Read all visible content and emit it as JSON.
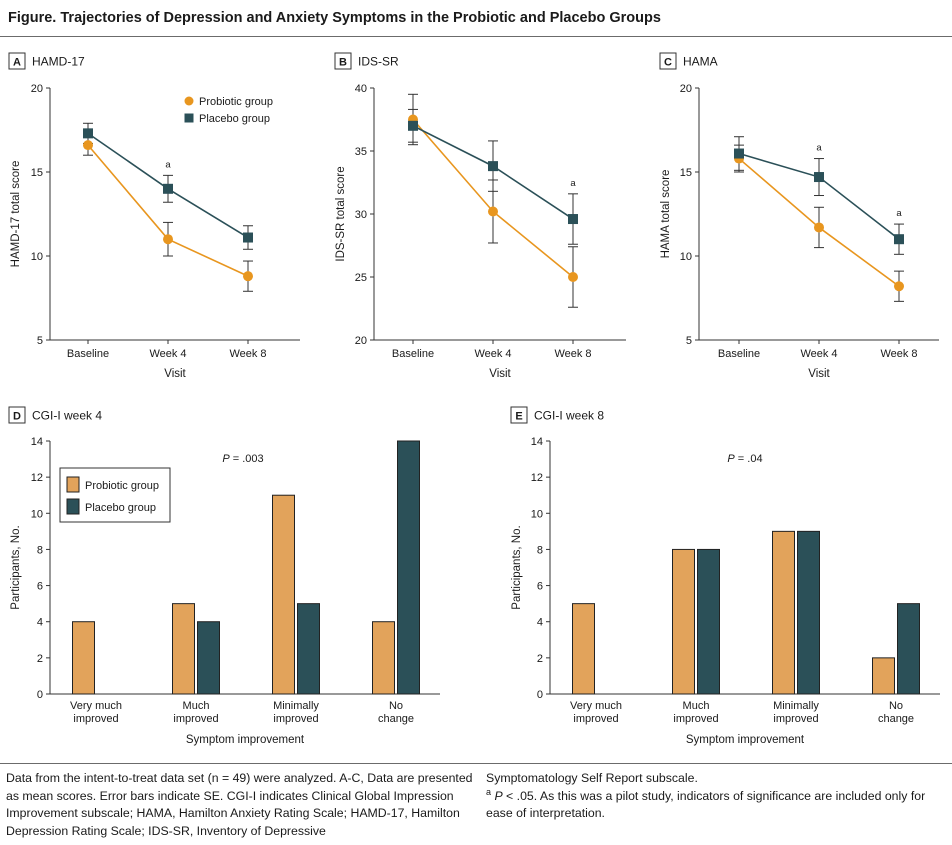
{
  "figure_title": "Figure. Trajectories of Depression and Anxiety Symptoms in the Probiotic and Placebo Groups",
  "colors": {
    "probiotic_line": "#e8961f",
    "probiotic_bar": "#e2a35b",
    "placebo": "#2b5058",
    "axis": "#333333",
    "rule": "#6b6b6b"
  },
  "footnote_left": "Data from the intent-to-treat data set (n = 49) were analyzed. A-C, Data are presented as mean scores. Error bars indicate SE. CGI-I indicates Clinical Global Impression Improvement subscale; HAMA, Hamilton Anxiety Rating Scale; HAMD-17, Hamilton Depression Rating Scale; IDS-SR, Inventory of Depressive",
  "footnote_right_1": "Symptomatology Self Report subscale.",
  "footnote_right_2_sup": "a",
  "footnote_right_2_p": "P",
  "footnote_right_2_text": " < .05. As this was a pilot study, indicators of significance are included only for ease of interpretation.",
  "chart_data": [
    {
      "type": "line",
      "panel": "A",
      "title": "HAMD-17",
      "xlabel": "Visit",
      "ylabel": "HAMD-17 total score",
      "categories": [
        "Baseline",
        "Week 4",
        "Week 8"
      ],
      "ylim": [
        5,
        20
      ],
      "yticks": [
        5,
        10,
        15,
        20
      ],
      "legend": [
        "Probiotic group",
        "Placebo group"
      ],
      "legend_position": "top-right",
      "significance": [
        "",
        "a",
        ""
      ],
      "series": [
        {
          "name": "Probiotic group",
          "marker": "circle",
          "values": [
            16.6,
            11.0,
            8.8
          ],
          "se": [
            0.6,
            1.0,
            0.9
          ]
        },
        {
          "name": "Placebo group",
          "marker": "square",
          "values": [
            17.3,
            14.0,
            11.1
          ],
          "se": [
            0.6,
            0.8,
            0.7
          ]
        }
      ]
    },
    {
      "type": "line",
      "panel": "B",
      "title": "IDS-SR",
      "xlabel": "Visit",
      "ylabel": "IDS-SR total score",
      "categories": [
        "Baseline",
        "Week 4",
        "Week 8"
      ],
      "ylim": [
        20,
        40
      ],
      "yticks": [
        20,
        25,
        30,
        35,
        40
      ],
      "significance": [
        "",
        "",
        "a"
      ],
      "series": [
        {
          "name": "Probiotic group",
          "marker": "circle",
          "values": [
            37.5,
            30.2,
            25.0
          ],
          "se": [
            2.0,
            2.5,
            2.4
          ]
        },
        {
          "name": "Placebo group",
          "marker": "square",
          "values": [
            37.0,
            33.8,
            29.6
          ],
          "se": [
            1.3,
            2.0,
            2.0
          ]
        }
      ]
    },
    {
      "type": "line",
      "panel": "C",
      "title": "HAMA",
      "xlabel": "Visit",
      "ylabel": "HAMA total score",
      "categories": [
        "Baseline",
        "Week 4",
        "Week 8"
      ],
      "ylim": [
        5,
        20
      ],
      "yticks": [
        5,
        10,
        15,
        20
      ],
      "significance": [
        "",
        "a",
        "a"
      ],
      "series": [
        {
          "name": "Probiotic group",
          "marker": "circle",
          "values": [
            15.8,
            11.7,
            8.2
          ],
          "se": [
            0.8,
            1.2,
            0.9
          ]
        },
        {
          "name": "Placebo group",
          "marker": "square",
          "values": [
            16.1,
            14.7,
            11.0
          ],
          "se": [
            1.0,
            1.1,
            0.9
          ]
        }
      ]
    },
    {
      "type": "bar",
      "panel": "D",
      "title": "CGI-I week 4",
      "xlabel": "Symptom improvement",
      "ylabel": "Participants, No.",
      "categories": [
        [
          "Very much",
          "improved"
        ],
        [
          "Much",
          "improved"
        ],
        [
          "Minimally",
          "improved"
        ],
        [
          "No",
          "change"
        ]
      ],
      "ylim": [
        0,
        14
      ],
      "yticks": [
        0,
        2,
        4,
        6,
        8,
        10,
        12,
        14
      ],
      "legend": [
        "Probiotic group",
        "Placebo group"
      ],
      "legend_position": "top-left",
      "p_label": "P",
      "p_value": " = .003",
      "series": [
        {
          "name": "Probiotic group",
          "values": [
            4,
            5,
            11,
            4
          ]
        },
        {
          "name": "Placebo group",
          "values": [
            0,
            4,
            5,
            14
          ]
        }
      ]
    },
    {
      "type": "bar",
      "panel": "E",
      "title": "CGI-I week 8",
      "xlabel": "Symptom improvement",
      "ylabel": "Participants, No.",
      "categories": [
        [
          "Very much",
          "improved"
        ],
        [
          "Much",
          "improved"
        ],
        [
          "Minimally",
          "improved"
        ],
        [
          "No",
          "change"
        ]
      ],
      "ylim": [
        0,
        14
      ],
      "yticks": [
        0,
        2,
        4,
        6,
        8,
        10,
        12,
        14
      ],
      "p_label": "P",
      "p_value": " = .04",
      "series": [
        {
          "name": "Probiotic group",
          "values": [
            5,
            8,
            9,
            2
          ]
        },
        {
          "name": "Placebo group",
          "values": [
            0,
            8,
            9,
            5
          ]
        }
      ]
    }
  ]
}
